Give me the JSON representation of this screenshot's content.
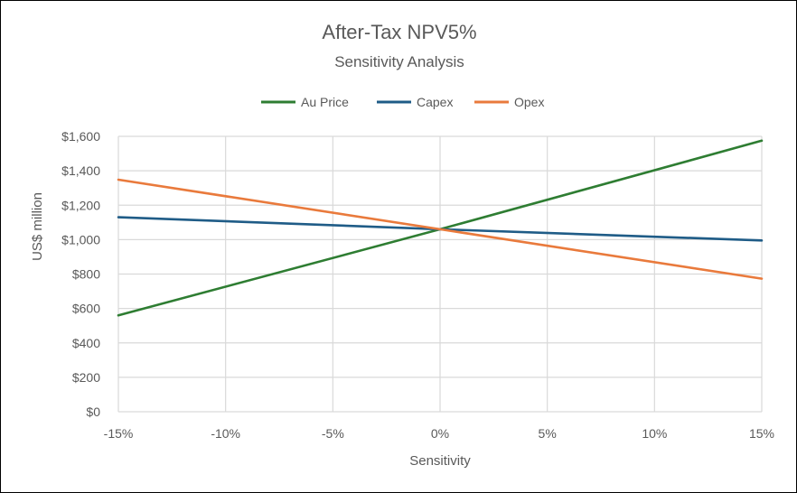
{
  "chart_data": {
    "type": "line",
    "title": "After-Tax NPV5%",
    "subtitle": "Sensitivity Analysis",
    "xlabel": "Sensitivity",
    "ylabel": "US$ million",
    "x": [
      -15,
      0,
      15
    ],
    "x_tick_values": [
      -15,
      -10,
      -5,
      0,
      5,
      10,
      15
    ],
    "x_tick_labels": [
      "-15%",
      "-10%",
      "-5%",
      "0%",
      "5%",
      "10%",
      "15%"
    ],
    "xlim": [
      -15,
      15
    ],
    "y_tick_values": [
      0,
      200,
      400,
      600,
      800,
      1000,
      1200,
      1400,
      1600
    ],
    "y_tick_labels": [
      "$0",
      "$200",
      "$400",
      "$600",
      "$800",
      "$1,000",
      "$1,200",
      "$1,400",
      "$1,600"
    ],
    "ylim": [
      0,
      1600
    ],
    "grid": true,
    "legend_position": "top-center",
    "series": [
      {
        "name": "Au Price",
        "color": "#2E7D32",
        "values": [
          560,
          1060,
          1575
        ]
      },
      {
        "name": "Capex",
        "color": "#1F5C87",
        "values": [
          1130,
          1060,
          995
        ]
      },
      {
        "name": "Opex",
        "color": "#E97A3C",
        "values": [
          1348,
          1060,
          773
        ]
      }
    ]
  }
}
